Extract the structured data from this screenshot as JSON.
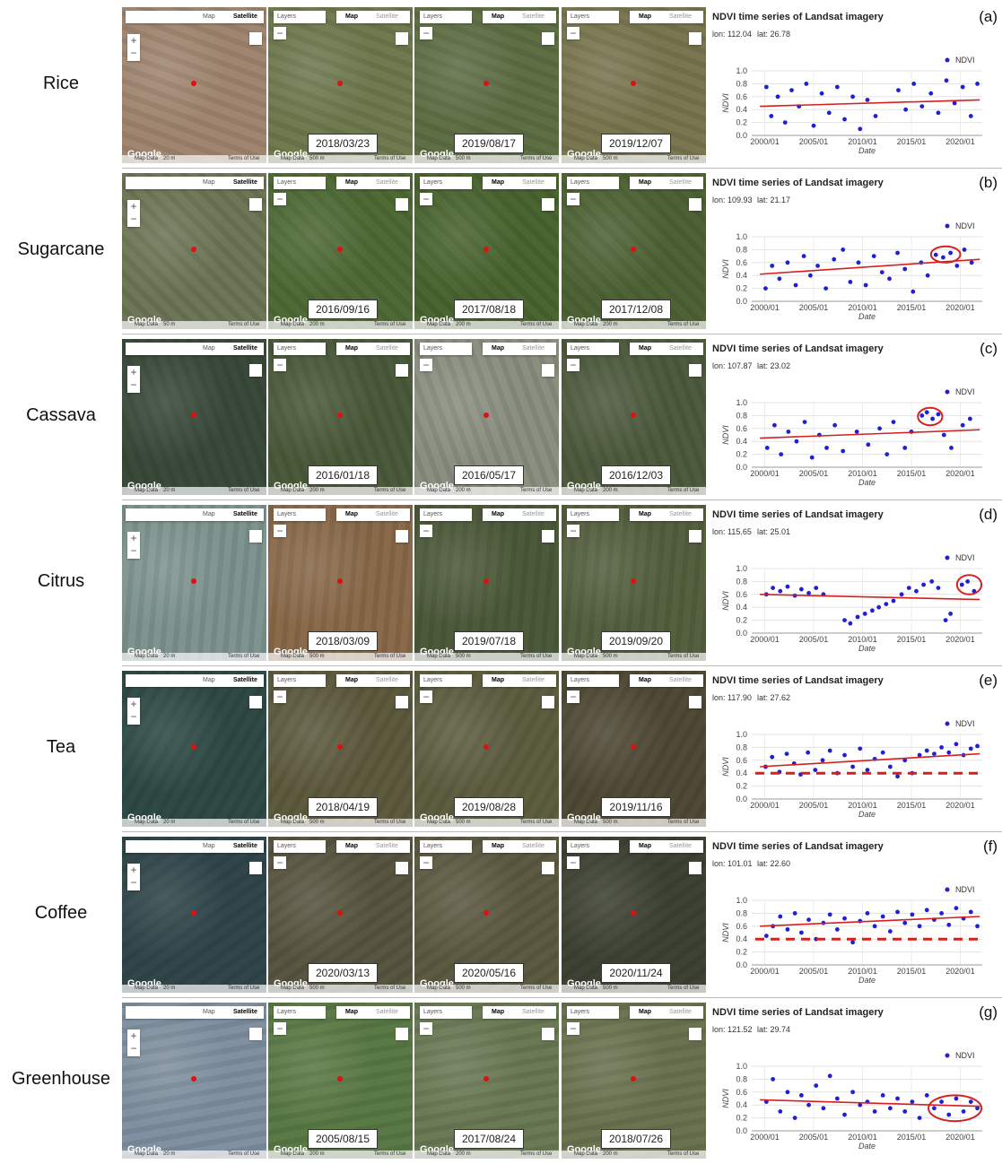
{
  "ui": {
    "map": "Map",
    "satellite": "Satellite",
    "layers": "Layers",
    "map_data": "Map Data",
    "terms": "Terms of Use",
    "google": "Google",
    "zoom_in": "+",
    "zoom_out": "−"
  },
  "rows": [
    {
      "label": "Rice",
      "panels": [
        {
          "scale": "20 m"
        },
        {
          "date": "2018/03/23",
          "scale": "500 m"
        },
        {
          "date": "2019/08/17",
          "scale": "500 m"
        },
        {
          "date": "2019/12/07",
          "scale": "500 m"
        }
      ]
    },
    {
      "label": "Sugarcane",
      "panels": [
        {
          "scale": "50 m"
        },
        {
          "date": "2016/09/16",
          "scale": "200 m"
        },
        {
          "date": "2017/08/18",
          "scale": "200 m"
        },
        {
          "date": "2017/12/08",
          "scale": "200 m"
        }
      ]
    },
    {
      "label": "Cassava",
      "panels": [
        {
          "scale": "20 m"
        },
        {
          "date": "2016/01/18",
          "scale": "200 m"
        },
        {
          "date": "2016/05/17",
          "scale": "200 m"
        },
        {
          "date": "2016/12/03",
          "scale": "200 m"
        }
      ]
    },
    {
      "label": "Citrus",
      "panels": [
        {
          "scale": "20 m"
        },
        {
          "date": "2018/03/09",
          "scale": "500 m"
        },
        {
          "date": "2019/07/18",
          "scale": "500 m"
        },
        {
          "date": "2019/09/20",
          "scale": "500 m"
        }
      ]
    },
    {
      "label": "Tea",
      "panels": [
        {
          "scale": "20 m"
        },
        {
          "date": "2018/04/19",
          "scale": "500 m"
        },
        {
          "date": "2019/08/28",
          "scale": "500 m"
        },
        {
          "date": "2019/11/16",
          "scale": "500 m"
        }
      ]
    },
    {
      "label": "Coffee",
      "panels": [
        {
          "scale": "20 m"
        },
        {
          "date": "2020/03/13",
          "scale": "500 m"
        },
        {
          "date": "2020/05/16",
          "scale": "500 m"
        },
        {
          "date": "2020/11/24",
          "scale": "500 m"
        }
      ]
    },
    {
      "label": "Greenhouse",
      "panels": [
        {
          "scale": "20 m"
        },
        {
          "date": "2005/08/15",
          "scale": "200 m"
        },
        {
          "date": "2017/08/24",
          "scale": "200 m"
        },
        {
          "date": "2018/07/26",
          "scale": "200 m"
        }
      ]
    }
  ],
  "chart_data": [
    {
      "type": "scatter",
      "title": "NDVI time series of Landsat imagery",
      "lon": "lon: 112.04",
      "lat": "lat: 26.78",
      "panel_label": "(a)",
      "xlabel": "Date",
      "ylabel": "NDVI",
      "xlim": [
        "1998/09",
        "2022/04"
      ],
      "xticks": [
        "2000/01",
        "2005/01",
        "2010/01",
        "2015/01",
        "2020/01"
      ],
      "ylim": [
        0,
        1
      ],
      "yticks": [
        {
          "value": 0,
          "label": "0.0"
        },
        0.2,
        0.4,
        0.6,
        0.8,
        {
          "value": 1,
          "label": "1.0"
        }
      ],
      "grid": true,
      "series": [
        {
          "name": "NDVI",
          "color": "#1f1fd6",
          "x": [
            "2000/03",
            "2000/09",
            "2001/05",
            "2002/02",
            "2002/10",
            "2003/07",
            "2004/04",
            "2005/01",
            "2005/11",
            "2006/08",
            "2007/06",
            "2008/03",
            "2009/01",
            "2009/10",
            "2010/07",
            "2011/05",
            "2013/09",
            "2014/06",
            "2015/04",
            "2016/02",
            "2017/01",
            "2017/10",
            "2018/08",
            "2019/06",
            "2020/04",
            "2021/02",
            "2021/10"
          ],
          "values": [
            0.75,
            0.3,
            0.6,
            0.2,
            0.7,
            0.45,
            0.8,
            0.15,
            0.65,
            0.35,
            0.75,
            0.25,
            0.6,
            0.1,
            0.55,
            0.3,
            0.7,
            0.4,
            0.8,
            0.45,
            0.65,
            0.35,
            0.85,
            0.5,
            0.75,
            0.3,
            0.8
          ]
        }
      ],
      "trend": {
        "color": "#d62020",
        "x": [
          "1999/07",
          "2022/01"
        ],
        "values": [
          0.45,
          0.55
        ]
      }
    },
    {
      "type": "scatter",
      "title": "NDVI time series of Landsat imagery",
      "lon": "lon: 109.93",
      "lat": "lat: 21.17",
      "panel_label": "(b)",
      "xlabel": "Date",
      "ylabel": "NDVI",
      "xlim": [
        "1998/09",
        "2022/04"
      ],
      "xticks": [
        "2000/01",
        "2005/01",
        "2010/01",
        "2015/01",
        "2020/01"
      ],
      "ylim": [
        0,
        1
      ],
      "yticks": [
        {
          "value": 0,
          "label": "0.0"
        },
        0.2,
        0.4,
        0.6,
        0.8,
        {
          "value": 1,
          "label": "1.0"
        }
      ],
      "grid": true,
      "series": [
        {
          "name": "NDVI",
          "color": "#1f1fd6",
          "x": [
            "2000/02",
            "2000/10",
            "2001/07",
            "2002/05",
            "2003/03",
            "2004/01",
            "2004/09",
            "2005/06",
            "2006/04",
            "2007/02",
            "2008/01",
            "2008/10",
            "2009/08",
            "2010/05",
            "2011/03",
            "2012/01",
            "2012/10",
            "2013/08",
            "2014/05",
            "2015/03",
            "2016/01",
            "2016/09",
            "2017/07",
            "2018/04",
            "2019/01",
            "2019/09",
            "2020/06",
            "2021/03"
          ],
          "values": [
            0.2,
            0.55,
            0.35,
            0.6,
            0.25,
            0.7,
            0.4,
            0.55,
            0.2,
            0.65,
            0.8,
            0.3,
            0.6,
            0.25,
            0.7,
            0.45,
            0.35,
            0.75,
            0.5,
            0.15,
            0.6,
            0.4,
            0.72,
            0.68,
            0.75,
            0.55,
            0.8,
            0.6
          ]
        }
      ],
      "trend": {
        "color": "#d62020",
        "x": [
          "1999/07",
          "2022/01"
        ],
        "values": [
          0.42,
          0.65
        ]
      },
      "highlight": {
        "color": "#d62020",
        "xlim": [
          "2017/01",
          "2020/01"
        ],
        "ylim": [
          0.6,
          0.85
        ]
      }
    },
    {
      "type": "scatter",
      "title": "NDVI time series of Landsat imagery",
      "lon": "lon: 107.87",
      "lat": "lat: 23.02",
      "panel_label": "(c)",
      "xlabel": "Date",
      "ylabel": "NDVI",
      "xlim": [
        "1998/09",
        "2022/04"
      ],
      "xticks": [
        "2000/01",
        "2005/01",
        "2010/01",
        "2015/01",
        "2020/01"
      ],
      "ylim": [
        0,
        1
      ],
      "yticks": [
        {
          "value": 0,
          "label": "0.0"
        },
        0.2,
        0.4,
        0.6,
        0.8,
        {
          "value": 1,
          "label": "1.0"
        }
      ],
      "grid": true,
      "series": [
        {
          "name": "NDVI",
          "color": "#1f1fd6",
          "x": [
            "2000/04",
            "2001/01",
            "2001/09",
            "2002/06",
            "2003/04",
            "2004/02",
            "2004/11",
            "2005/08",
            "2006/05",
            "2007/03",
            "2008/01",
            "2009/06",
            "2010/08",
            "2011/10",
            "2012/07",
            "2013/03",
            "2014/05",
            "2015/01",
            "2016/02",
            "2016/08",
            "2017/03",
            "2017/10",
            "2018/05",
            "2019/02",
            "2020/04",
            "2021/01"
          ],
          "values": [
            0.3,
            0.65,
            0.2,
            0.55,
            0.4,
            0.7,
            0.15,
            0.5,
            0.3,
            0.65,
            0.25,
            0.55,
            0.35,
            0.6,
            0.2,
            0.7,
            0.3,
            0.55,
            0.8,
            0.85,
            0.75,
            0.82,
            0.5,
            0.3,
            0.65,
            0.75
          ]
        }
      ],
      "trend": {
        "color": "#d62020",
        "x": [
          "1999/07",
          "2022/01"
        ],
        "values": [
          0.45,
          0.58
        ]
      },
      "highlight": {
        "color": "#d62020",
        "xlim": [
          "2015/09",
          "2018/03"
        ],
        "ylim": [
          0.65,
          0.92
        ]
      }
    },
    {
      "type": "scatter",
      "title": "NDVI time series of Landsat imagery",
      "lon": "lon: 115.65",
      "lat": "lat: 25.01",
      "panel_label": "(d)",
      "xlabel": "Date",
      "ylabel": "NDVI",
      "xlim": [
        "1998/09",
        "2022/04"
      ],
      "xticks": [
        "2000/01",
        "2005/01",
        "2010/01",
        "2015/01",
        "2020/01"
      ],
      "ylim": [
        0,
        1
      ],
      "yticks": [
        {
          "value": 0,
          "label": "0.0"
        },
        0.2,
        0.4,
        0.6,
        0.8,
        {
          "value": 1,
          "label": "1.0"
        }
      ],
      "grid": true,
      "series": [
        {
          "name": "NDVI",
          "color": "#1f1fd6",
          "x": [
            "2000/03",
            "2000/11",
            "2001/08",
            "2002/05",
            "2003/02",
            "2003/10",
            "2004/07",
            "2005/04",
            "2006/01",
            "2008/03",
            "2008/10",
            "2009/07",
            "2010/04",
            "2011/01",
            "2011/09",
            "2012/06",
            "2013/03",
            "2014/01",
            "2014/10",
            "2015/07",
            "2016/04",
            "2017/02",
            "2017/10",
            "2018/07",
            "2019/01",
            "2020/03",
            "2020/10",
            "2021/06"
          ],
          "values": [
            0.6,
            0.7,
            0.65,
            0.72,
            0.58,
            0.68,
            0.62,
            0.7,
            0.6,
            0.2,
            0.15,
            0.25,
            0.3,
            0.35,
            0.4,
            0.45,
            0.5,
            0.6,
            0.7,
            0.65,
            0.75,
            0.8,
            0.7,
            0.2,
            0.3,
            0.75,
            0.8,
            0.65
          ]
        }
      ],
      "trend": {
        "color": "#d62020",
        "x": [
          "1999/07",
          "2022/01"
        ],
        "values": [
          0.6,
          0.52
        ]
      },
      "highlight": {
        "color": "#d62020",
        "xlim": [
          "2019/09",
          "2022/03"
        ],
        "ylim": [
          0.6,
          0.9
        ]
      }
    },
    {
      "type": "scatter",
      "title": "NDVI time series of Landsat imagery",
      "lon": "lon: 117.90",
      "lat": "lat: 27.62",
      "panel_label": "(e)",
      "xlabel": "Date",
      "ylabel": "NDVI",
      "xlim": [
        "1998/09",
        "2022/04"
      ],
      "xticks": [
        "2000/01",
        "2005/01",
        "2010/01",
        "2015/01",
        "2020/01"
      ],
      "ylim": [
        0,
        1
      ],
      "yticks": [
        {
          "value": 0,
          "label": "0.0"
        },
        0.2,
        0.4,
        0.6,
        0.8,
        {
          "value": 1,
          "label": "1.0"
        }
      ],
      "grid": true,
      "series": [
        {
          "name": "NDVI",
          "color": "#1f1fd6",
          "x": [
            "2000/02",
            "2000/10",
            "2001/07",
            "2002/04",
            "2003/01",
            "2003/09",
            "2004/06",
            "2005/03",
            "2005/12",
            "2006/09",
            "2007/06",
            "2008/03",
            "2009/01",
            "2009/10",
            "2010/07",
            "2011/04",
            "2012/02",
            "2012/11",
            "2013/08",
            "2014/05",
            "2015/02",
            "2015/11",
            "2016/08",
            "2017/05",
            "2018/02",
            "2018/11",
            "2019/08",
            "2020/05",
            "2021/02",
            "2021/10"
          ],
          "values": [
            0.5,
            0.65,
            0.42,
            0.7,
            0.55,
            0.38,
            0.72,
            0.45,
            0.6,
            0.75,
            0.4,
            0.68,
            0.5,
            0.78,
            0.45,
            0.62,
            0.72,
            0.5,
            0.35,
            0.6,
            0.4,
            0.68,
            0.75,
            0.7,
            0.8,
            0.72,
            0.85,
            0.68,
            0.78,
            0.82
          ]
        }
      ],
      "trend": {
        "color": "#d62020",
        "x": [
          "1999/07",
          "2022/01"
        ],
        "values": [
          0.5,
          0.7
        ]
      },
      "threshold": 0.4
    },
    {
      "type": "scatter",
      "title": "NDVI time series of Landsat imagery",
      "lon": "lon: 101.01",
      "lat": "lat: 22.60",
      "panel_label": "(f)",
      "xlabel": "Date",
      "ylabel": "NDVI",
      "xlim": [
        "1998/09",
        "2022/04"
      ],
      "xticks": [
        "2000/01",
        "2005/01",
        "2010/01",
        "2015/01",
        "2020/01"
      ],
      "ylim": [
        0,
        1
      ],
      "yticks": [
        {
          "value": 0,
          "label": "0.0"
        },
        0.2,
        0.4,
        0.6,
        0.8,
        {
          "value": 1,
          "label": "1.0"
        }
      ],
      "grid": true,
      "series": [
        {
          "name": "NDVI",
          "color": "#1f1fd6",
          "x": [
            "2000/03",
            "2000/11",
            "2001/08",
            "2002/05",
            "2003/02",
            "2003/10",
            "2004/07",
            "2005/04",
            "2006/01",
            "2006/09",
            "2007/06",
            "2008/03",
            "2009/01",
            "2009/10",
            "2010/07",
            "2011/04",
            "2012/02",
            "2012/11",
            "2013/08",
            "2014/05",
            "2015/02",
            "2015/11",
            "2016/08",
            "2017/05",
            "2018/02",
            "2018/11",
            "2019/08",
            "2020/05",
            "2021/02",
            "2021/10"
          ],
          "values": [
            0.45,
            0.6,
            0.75,
            0.55,
            0.8,
            0.5,
            0.7,
            0.4,
            0.65,
            0.78,
            0.55,
            0.72,
            0.35,
            0.68,
            0.8,
            0.6,
            0.75,
            0.52,
            0.82,
            0.65,
            0.78,
            0.6,
            0.85,
            0.7,
            0.8,
            0.62,
            0.88,
            0.72,
            0.82,
            0.6
          ]
        }
      ],
      "trend": {
        "color": "#d62020",
        "x": [
          "1999/07",
          "2022/01"
        ],
        "values": [
          0.6,
          0.75
        ]
      },
      "threshold": 0.4
    },
    {
      "type": "scatter",
      "title": "NDVI time series of Landsat imagery",
      "lon": "lon: 121.52",
      "lat": "lat: 29.74",
      "panel_label": "(g)",
      "xlabel": "Date",
      "ylabel": "NDVI",
      "xlim": [
        "1998/09",
        "2022/04"
      ],
      "xticks": [
        "2000/01",
        "2005/01",
        "2010/01",
        "2015/01",
        "2020/01"
      ],
      "ylim": [
        0,
        1
      ],
      "yticks": [
        {
          "value": 0,
          "label": "0.0"
        },
        0.2,
        0.4,
        0.6,
        0.8,
        {
          "value": 1,
          "label": "1.0"
        }
      ],
      "grid": true,
      "series": [
        {
          "name": "NDVI",
          "color": "#1f1fd6",
          "x": [
            "2000/03",
            "2000/11",
            "2001/08",
            "2002/05",
            "2003/02",
            "2003/10",
            "2004/07",
            "2005/04",
            "2006/01",
            "2006/09",
            "2007/06",
            "2008/03",
            "2009/01",
            "2009/10",
            "2010/07",
            "2011/04",
            "2012/02",
            "2012/11",
            "2013/08",
            "2014/05",
            "2015/02",
            "2015/11",
            "2016/08",
            "2017/05",
            "2018/02",
            "2018/11",
            "2019/08",
            "2020/05",
            "2021/02",
            "2021/10"
          ],
          "values": [
            0.45,
            0.8,
            0.3,
            0.6,
            0.2,
            0.55,
            0.4,
            0.7,
            0.35,
            0.85,
            0.5,
            0.25,
            0.6,
            0.4,
            0.45,
            0.3,
            0.55,
            0.35,
            0.5,
            0.3,
            0.45,
            0.2,
            0.55,
            0.35,
            0.45,
            0.25,
            0.5,
            0.3,
            0.45,
            0.35
          ]
        }
      ],
      "trend": {
        "color": "#d62020",
        "x": [
          "1999/07",
          "2022/01"
        ],
        "values": [
          0.48,
          0.38
        ]
      },
      "highlight": {
        "color": "#d62020",
        "xlim": [
          "2016/10",
          "2022/03"
        ],
        "ylim": [
          0.15,
          0.55
        ]
      }
    }
  ]
}
